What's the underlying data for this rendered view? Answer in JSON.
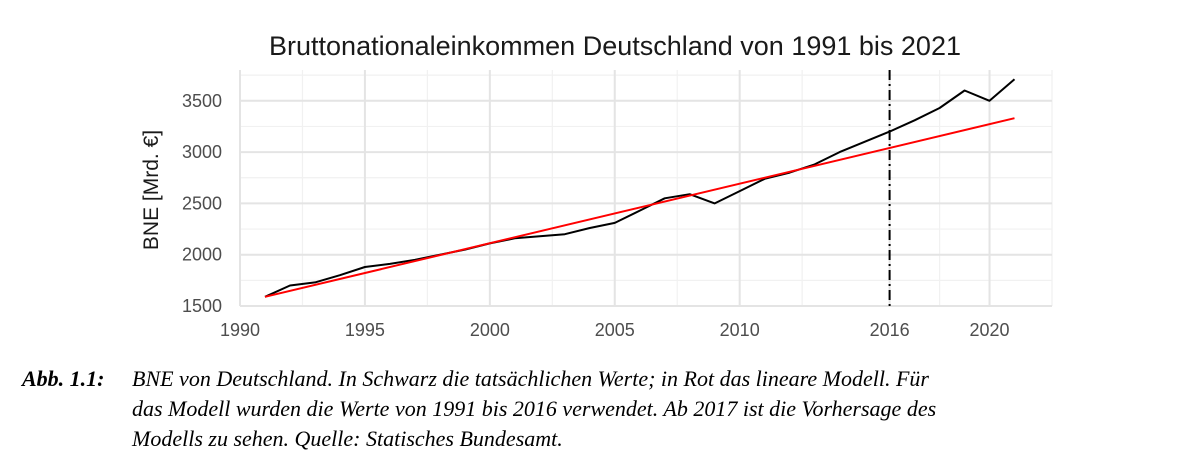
{
  "chart_data": {
    "type": "line",
    "title": "Bruttonationaleinkommen Deutschland von 1991 bis 2021",
    "xlabel": "",
    "ylabel": "BNE [Mrd. €]",
    "xlim": [
      1990,
      2022.5
    ],
    "ylim": [
      1500,
      3800
    ],
    "x_ticks": [
      1990,
      1995,
      2000,
      2005,
      2010,
      2016,
      2020
    ],
    "x_minor_ticks": [
      1992.5,
      1997.5,
      2002.5,
      2007.5,
      2012.5,
      2018,
      2022.5
    ],
    "y_ticks": [
      1500,
      2000,
      2500,
      3000,
      3500
    ],
    "y_minor_ticks": [
      1750,
      2250,
      2750,
      3250,
      3750
    ],
    "grid": true,
    "legend": "none",
    "vline": {
      "x": 2016,
      "style": "dashdot",
      "color": "#000000"
    },
    "series": [
      {
        "color": "#000000",
        "x": [
          1991,
          1992,
          1993,
          1994,
          1995,
          1996,
          1997,
          1998,
          1999,
          2000,
          2001,
          2002,
          2003,
          2004,
          2005,
          2006,
          2007,
          2008,
          2009,
          2010,
          2011,
          2012,
          2013,
          2014,
          2015,
          2016,
          2017,
          2018,
          2019,
          2020,
          2021
        ],
        "y": [
          1590,
          1700,
          1730,
          1800,
          1880,
          1910,
          1950,
          2000,
          2050,
          2110,
          2160,
          2180,
          2200,
          2260,
          2310,
          2430,
          2550,
          2590,
          2500,
          2620,
          2740,
          2800,
          2880,
          3000,
          3100,
          3200,
          3310,
          3430,
          3600,
          3500,
          3710
        ]
      },
      {
        "color": "#ff0000",
        "x": [
          1991,
          2021
        ],
        "y": [
          1590,
          3330
        ]
      }
    ]
  },
  "caption": {
    "label": "Abb. 1.1:",
    "line1": "BNE von Deutschland. In Schwarz die tatsächlichen Werte; in Rot das lineare Modell. Für",
    "line2": "das Modell wurden die Werte von 1991 bis 2016 verwendet. Ab 2017 ist die Vorhersage des",
    "line3": "Modells zu sehen. Quelle: Statisches Bundesamt."
  }
}
